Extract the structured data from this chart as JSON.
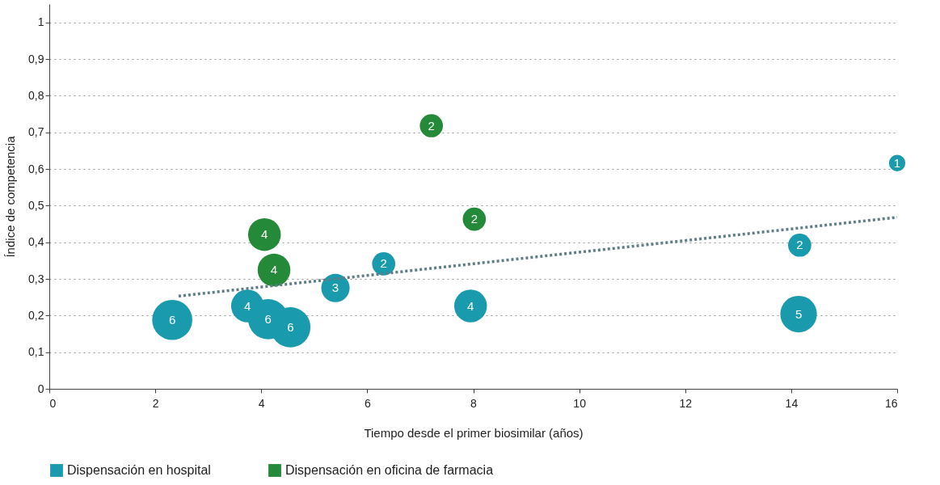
{
  "chart_data": {
    "type": "bubble",
    "xlabel": "Tiempo desde el primer biosimilar (años)",
    "ylabel": "Índice de competencia",
    "xlim": [
      0,
      16
    ],
    "xticks": [
      0,
      2,
      4,
      6,
      8,
      10,
      12,
      14,
      16
    ],
    "ylim": [
      0,
      1.05
    ],
    "yticks": [
      0,
      {
        "value": 0.1,
        "label": "0,1"
      },
      {
        "value": 0.2,
        "label": "0,2"
      },
      {
        "value": 0.3,
        "label": "0,3"
      },
      {
        "value": 0.4,
        "label": "0,4"
      },
      {
        "value": 0.5,
        "label": "0,5"
      },
      {
        "value": 0.6,
        "label": "0,6"
      },
      {
        "value": 0.7,
        "label": "0,7"
      },
      {
        "value": 0.8,
        "label": "0,8"
      },
      {
        "value": 0.9,
        "label": "0,9"
      },
      1
    ],
    "grid": "y",
    "legend": "bottom",
    "annotations": [
      {
        "text": "6",
        "x": 2.32,
        "y": 0.188
      },
      {
        "text": "4",
        "x": 3.74,
        "y": 0.226
      },
      {
        "text": "6",
        "x": 4.13,
        "y": 0.19
      },
      {
        "text": "6",
        "x": 4.55,
        "y": 0.168
      },
      {
        "text": "3",
        "x": 5.4,
        "y": 0.275
      },
      {
        "text": "2",
        "x": 6.31,
        "y": 0.341
      },
      {
        "text": "4",
        "x": 7.95,
        "y": 0.226
      },
      {
        "text": "5",
        "x": 14.14,
        "y": 0.204
      },
      {
        "text": "2",
        "x": 14.16,
        "y": 0.392
      },
      {
        "text": "1",
        "x": 16,
        "y": 0.616
      },
      {
        "text": "2",
        "x": 7.21,
        "y": 0.718
      },
      {
        "text": "2",
        "x": 8.02,
        "y": 0.463
      },
      {
        "text": "4",
        "x": 4.06,
        "y": 0.421
      },
      {
        "text": "4",
        "x": 4.24,
        "y": 0.324
      }
    ],
    "series": [
      {
        "name": "Dispensación en hospital",
        "color": "#1a9aad",
        "x": [
          2.32,
          3.74,
          4.13,
          4.55,
          5.4,
          6.31,
          7.95,
          14.14,
          14.16,
          16
        ],
        "values": [
          0.188,
          0.226,
          0.19,
          0.168,
          0.275,
          0.341,
          0.226,
          0.204,
          0.392,
          0.616
        ],
        "sizes": [
          1,
          0.667,
          1,
          1,
          0.5,
          0.333,
          0.667,
          0.833,
          0.333,
          0.167
        ]
      },
      {
        "name": "Dispensación en oficina de farmacia",
        "color": "#248a3a",
        "x": [
          7.21,
          8.02,
          4.06,
          4.24
        ],
        "values": [
          0.718,
          0.463,
          0.421,
          0.324
        ],
        "sizes": [
          0.333,
          0.333,
          0.667,
          0.667
        ]
      },
      {
        "type": "line",
        "color": "#5f7d86",
        "line_style": "dotted",
        "x": [
          2.44,
          16
        ],
        "values": [
          0.253,
          0.468
        ]
      }
    ]
  }
}
